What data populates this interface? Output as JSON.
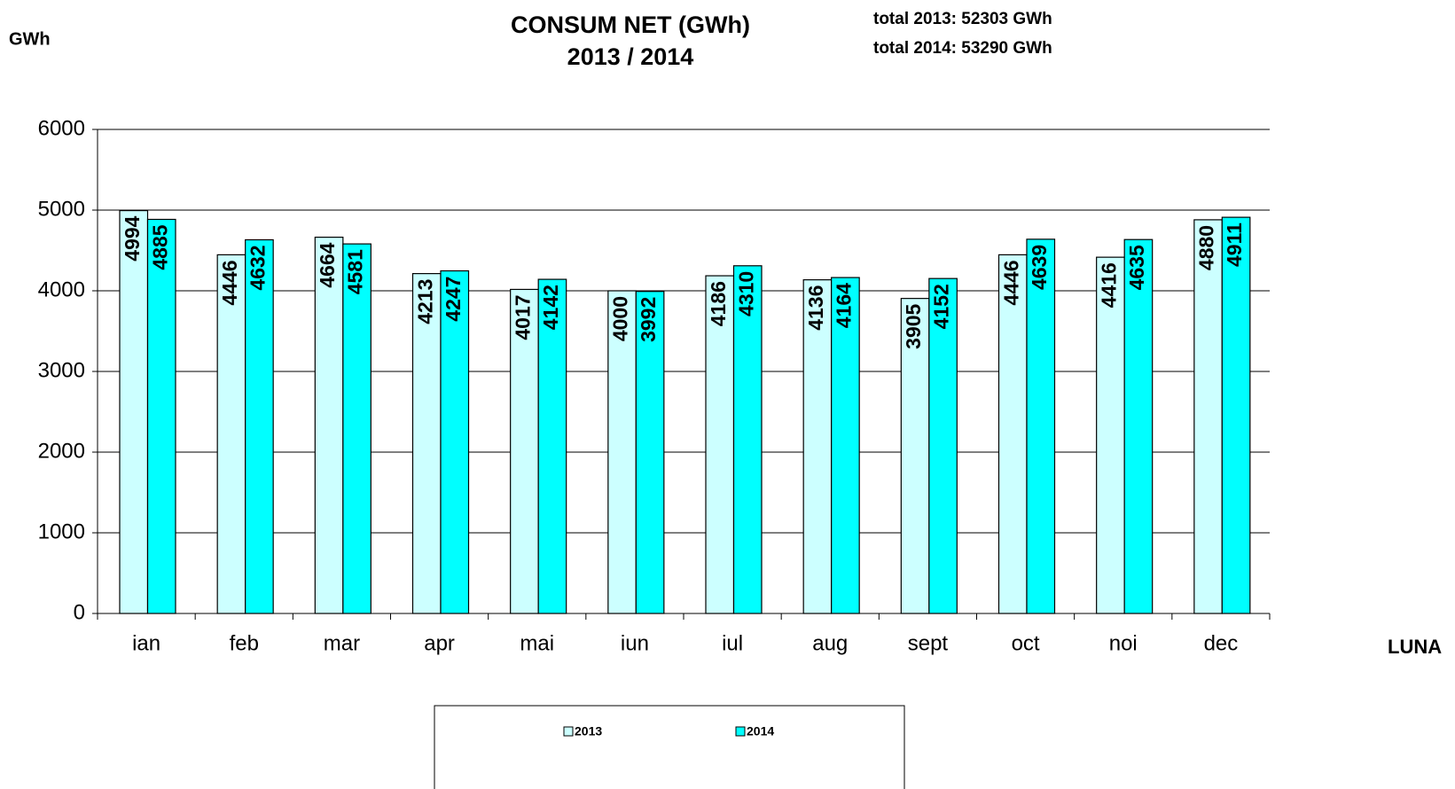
{
  "chart_data": {
    "type": "bar",
    "title": "CONSUM NET (GWh)",
    "subtitle": "2013 / 2014",
    "annotations": [
      "total 2013: 52303 GWh",
      "total 2014: 53290 GWh"
    ],
    "y_label": "GWh",
    "x_label": "LUNA",
    "categories": [
      "ian",
      "feb",
      "mar",
      "apr",
      "mai",
      "iun",
      "iul",
      "aug",
      "sept",
      "oct",
      "noi",
      "dec"
    ],
    "series": [
      {
        "name": "2013",
        "color": "#ccffff",
        "values": [
          4994,
          4446,
          4664,
          4213,
          4017,
          4000,
          4186,
          4136,
          3905,
          4446,
          4416,
          4880
        ]
      },
      {
        "name": "2014",
        "color": "#00ffff",
        "values": [
          4885,
          4632,
          4581,
          4247,
          4142,
          3992,
          4310,
          4164,
          4152,
          4639,
          4635,
          4911
        ]
      }
    ],
    "ylim": [
      0,
      6000
    ],
    "yticks": [
      0,
      1000,
      2000,
      3000,
      4000,
      5000,
      6000
    ],
    "grid": true,
    "legend": "bottom"
  }
}
